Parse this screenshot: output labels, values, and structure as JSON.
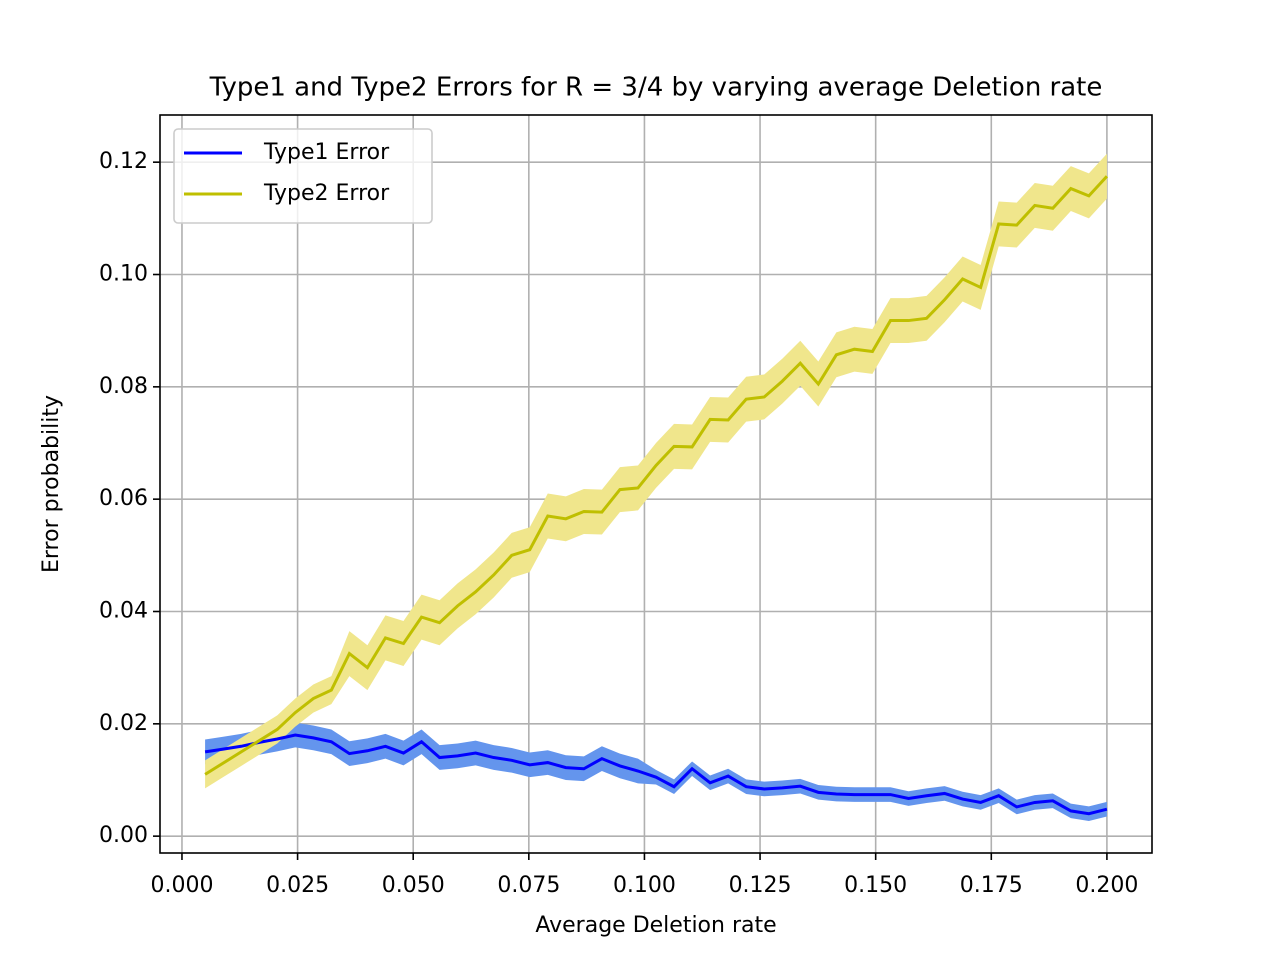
{
  "chart_data": {
    "type": "line",
    "title": "Type1 and Type2 Errors for R = 3/4 by varying average Deletion rate",
    "xlabel": "Average Deletion rate",
    "ylabel": "Error probability",
    "x": [
      0.005,
      0.0089,
      0.0128,
      0.0167,
      0.0206,
      0.0245,
      0.0284,
      0.0323,
      0.0362,
      0.0401,
      0.044,
      0.0479,
      0.0518,
      0.0557,
      0.0596,
      0.0635,
      0.0674,
      0.0713,
      0.0752,
      0.0791,
      0.083,
      0.0869,
      0.0908,
      0.0947,
      0.0986,
      0.1025,
      0.1064,
      0.1103,
      0.1142,
      0.1181,
      0.122,
      0.1259,
      0.1298,
      0.1337,
      0.1376,
      0.1415,
      0.1454,
      0.1493,
      0.1532,
      0.1571,
      0.161,
      0.1649,
      0.1688,
      0.1727,
      0.1766,
      0.1805,
      0.1844,
      0.1883,
      0.1922,
      0.1961,
      0.2
    ],
    "series": [
      {
        "name": "Type1 Error",
        "color": "#0000ff",
        "band_color": "#6495ed",
        "values": [
          0.015,
          0.0155,
          0.016,
          0.0167,
          0.0173,
          0.018,
          0.0175,
          0.0168,
          0.0147,
          0.0152,
          0.016,
          0.0148,
          0.0168,
          0.014,
          0.0143,
          0.0148,
          0.014,
          0.0135,
          0.0127,
          0.0131,
          0.0122,
          0.012,
          0.0138,
          0.0125,
          0.0116,
          0.0105,
          0.0088,
          0.012,
          0.0095,
          0.0107,
          0.0088,
          0.0084,
          0.0086,
          0.0089,
          0.0078,
          0.0075,
          0.0074,
          0.0074,
          0.0074,
          0.0067,
          0.0072,
          0.0076,
          0.0066,
          0.006,
          0.0072,
          0.0052,
          0.006,
          0.0063,
          0.0045,
          0.004,
          0.0048
        ],
        "errors": [
          0.0022,
          0.0022,
          0.0022,
          0.0022,
          0.0022,
          0.0022,
          0.0022,
          0.0022,
          0.0022,
          0.0022,
          0.0022,
          0.0022,
          0.0022,
          0.0022,
          0.0022,
          0.0022,
          0.0022,
          0.0022,
          0.0022,
          0.0022,
          0.0022,
          0.0022,
          0.0022,
          0.0022,
          0.0022,
          0.0013,
          0.0013,
          0.0013,
          0.0013,
          0.0013,
          0.0013,
          0.0013,
          0.0013,
          0.0013,
          0.0013,
          0.0013,
          0.0013,
          0.0013,
          0.0013,
          0.0013,
          0.0013,
          0.0013,
          0.0013,
          0.0013,
          0.0013,
          0.0013,
          0.0013,
          0.0013,
          0.0013,
          0.0013,
          0.0013
        ]
      },
      {
        "name": "Type2 Error",
        "color": "#bfbf00",
        "band_color": "#f0e68c",
        "values": [
          0.011,
          0.013,
          0.015,
          0.017,
          0.019,
          0.022,
          0.0245,
          0.026,
          0.0325,
          0.03,
          0.0353,
          0.0343,
          0.039,
          0.038,
          0.041,
          0.0435,
          0.0465,
          0.05,
          0.051,
          0.057,
          0.0565,
          0.0578,
          0.0577,
          0.0617,
          0.062,
          0.066,
          0.0694,
          0.0693,
          0.0742,
          0.0741,
          0.0778,
          0.0782,
          0.081,
          0.0842,
          0.0805,
          0.0857,
          0.0867,
          0.0863,
          0.0918,
          0.0918,
          0.0922,
          0.0955,
          0.0992,
          0.0977,
          0.109,
          0.1088,
          0.1123,
          0.1118,
          0.1153,
          0.114,
          0.1175
        ],
        "errors": [
          0.0025,
          0.0025,
          0.0025,
          0.0025,
          0.0025,
          0.0025,
          0.0025,
          0.0025,
          0.004,
          0.004,
          0.004,
          0.004,
          0.004,
          0.004,
          0.004,
          0.004,
          0.004,
          0.004,
          0.004,
          0.004,
          0.004,
          0.004,
          0.004,
          0.004,
          0.004,
          0.004,
          0.004,
          0.004,
          0.004,
          0.004,
          0.004,
          0.004,
          0.004,
          0.004,
          0.004,
          0.004,
          0.004,
          0.004,
          0.004,
          0.004,
          0.004,
          0.004,
          0.004,
          0.004,
          0.004,
          0.004,
          0.004,
          0.004,
          0.004,
          0.004,
          0.004
        ]
      }
    ],
    "xlim": [
      -0.00475,
      0.20975
    ],
    "ylim": [
      -0.003,
      0.1284
    ],
    "xticks": [
      {
        "value": 0,
        "label": "0.000"
      },
      {
        "value": 0.025,
        "label": "0.025"
      },
      {
        "value": 0.05,
        "label": "0.050"
      },
      {
        "value": 0.075,
        "label": "0.075"
      },
      {
        "value": 0.1,
        "label": "0.100"
      },
      {
        "value": 0.125,
        "label": "0.125"
      },
      {
        "value": 0.15,
        "label": "0.150"
      },
      {
        "value": 0.175,
        "label": "0.175"
      },
      {
        "value": 0.2,
        "label": "0.200"
      }
    ],
    "yticks": [
      {
        "value": 0,
        "label": "0.00"
      },
      {
        "value": 0.02,
        "label": "0.02"
      },
      {
        "value": 0.04,
        "label": "0.04"
      },
      {
        "value": 0.06,
        "label": "0.06"
      },
      {
        "value": 0.08,
        "label": "0.08"
      },
      {
        "value": 0.1,
        "label": "0.10"
      },
      {
        "value": 0.12,
        "label": "0.12"
      }
    ],
    "grid": true,
    "legend": "upper left"
  }
}
